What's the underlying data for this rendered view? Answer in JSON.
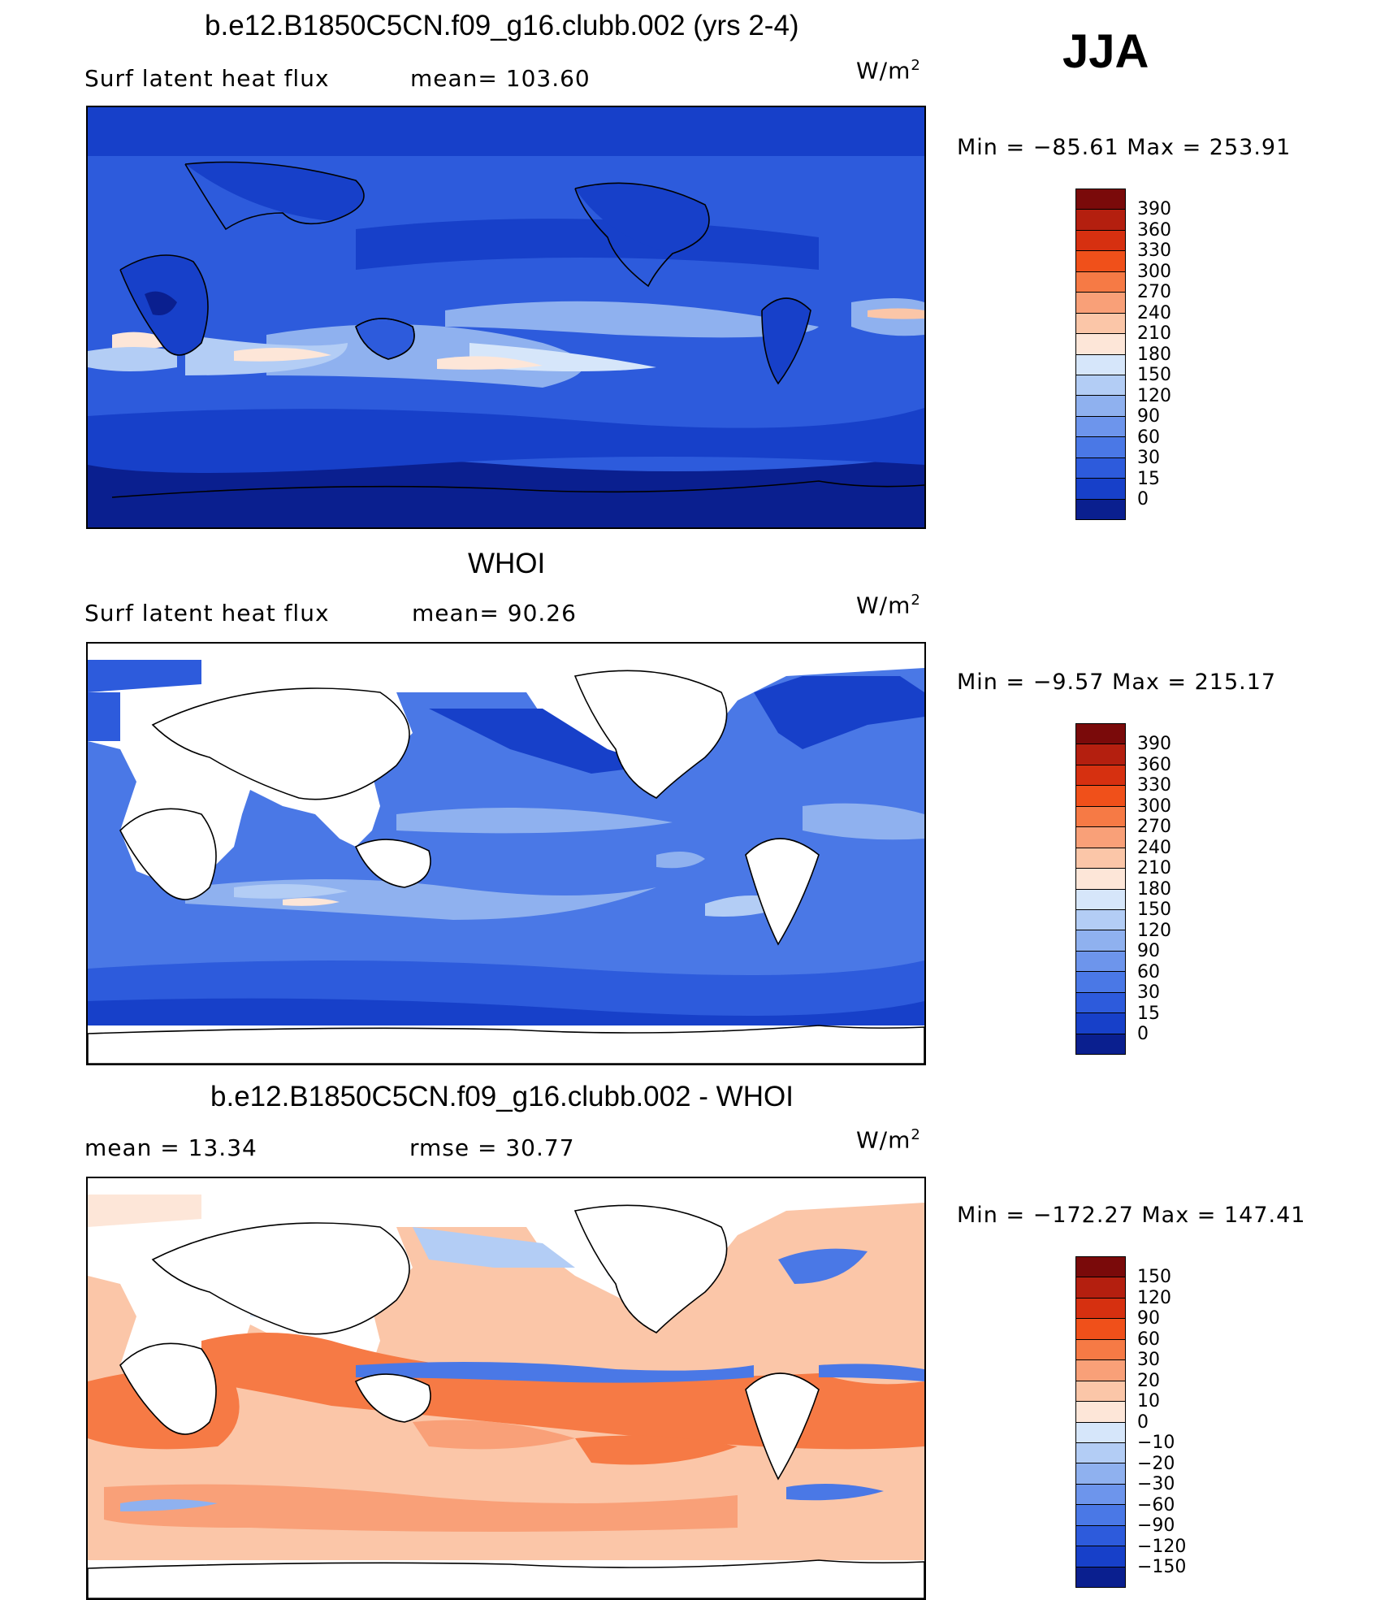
{
  "season": "JJA",
  "panels": [
    {
      "title": "b.e12.B1850C5CN.f09_g16.clubb.002 (yrs 2-4)",
      "left_label": "Surf  latent  heat  flux",
      "right_label": "mean=  103.60",
      "units": "W/m",
      "units_sup": "2",
      "minmax": "Min  =  −85.61  Max  =  253.91",
      "colorbar": {
        "levels": [
          "390",
          "360",
          "330",
          "300",
          "270",
          "240",
          "210",
          "180",
          "150",
          "120",
          "90",
          "60",
          "30",
          "15",
          "0"
        ],
        "colors": [
          "#7a0a0a",
          "#b41f0f",
          "#d63010",
          "#f0501a",
          "#f67a45",
          "#f9a078",
          "#fbc6a8",
          "#fde6d8",
          "#d6e6fa",
          "#b3cdf5",
          "#8fb1ef",
          "#6d95ec",
          "#4a78e6",
          "#2d5bdc",
          "#1740c9",
          "#0a1f8f"
        ]
      }
    },
    {
      "title": "WHOI",
      "left_label": "Surf  latent  heat  flux",
      "right_label": "mean=   90.26",
      "units": "W/m",
      "units_sup": "2",
      "minmax": "Min  =    −9.57  Max  =  215.17",
      "colorbar": {
        "levels": [
          "390",
          "360",
          "330",
          "300",
          "270",
          "240",
          "210",
          "180",
          "150",
          "120",
          "90",
          "60",
          "30",
          "15",
          "0"
        ],
        "colors": [
          "#7a0a0a",
          "#b41f0f",
          "#d63010",
          "#f0501a",
          "#f67a45",
          "#f9a078",
          "#fbc6a8",
          "#fde6d8",
          "#d6e6fa",
          "#b3cdf5",
          "#8fb1ef",
          "#6d95ec",
          "#4a78e6",
          "#2d5bdc",
          "#1740c9",
          "#0a1f8f"
        ]
      }
    },
    {
      "title": "b.e12.B1850C5CN.f09_g16.clubb.002 - WHOI",
      "left_label": "mean  =    13.34",
      "right_label": "rmse  =    30.77",
      "units": "W/m",
      "units_sup": "2",
      "minmax": "Min  =  −172.27  Max  =  147.41",
      "colorbar": {
        "levels": [
          "150",
          "120",
          "90",
          "60",
          "30",
          "20",
          "10",
          "0",
          "−10",
          "−20",
          "−30",
          "−60",
          "−90",
          "−120",
          "−150"
        ],
        "colors": [
          "#7a0a0a",
          "#b41f0f",
          "#d63010",
          "#f0501a",
          "#f67a45",
          "#f9a078",
          "#fbc6a8",
          "#fde6d8",
          "#d6e6fa",
          "#b3cdf5",
          "#8fb1ef",
          "#6d95ec",
          "#4a78e6",
          "#2d5bdc",
          "#1740c9",
          "#0a1f8f"
        ]
      }
    }
  ]
}
